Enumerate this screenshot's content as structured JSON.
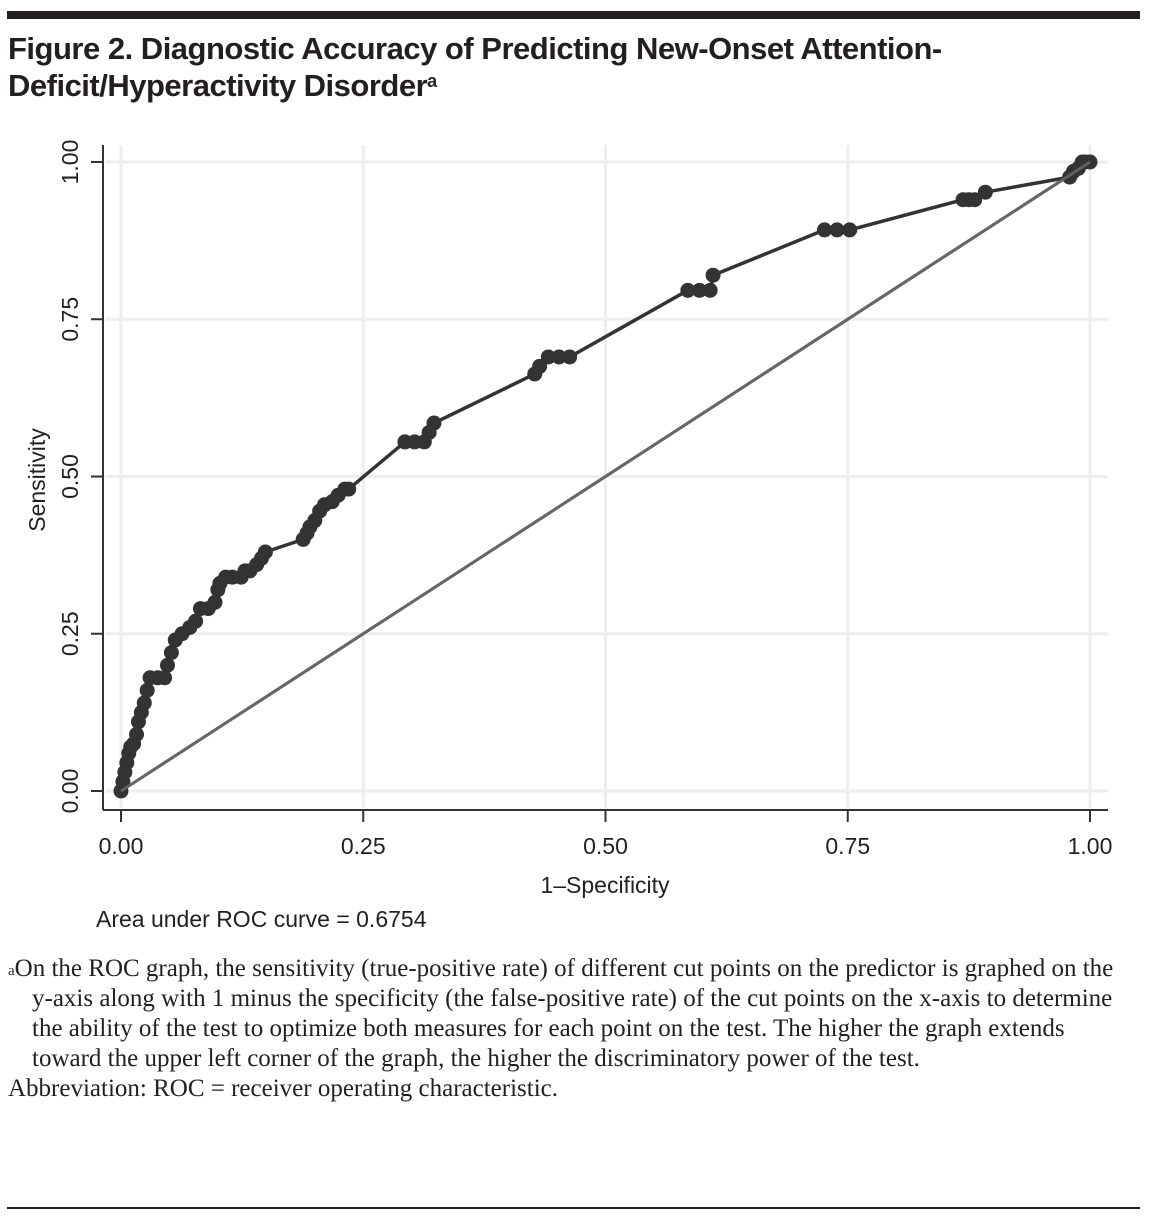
{
  "figure": {
    "title": "Figure 2. Diagnostic Accuracy of Predicting New-Onset Attention-Deficit/Hyperactivity Disorder",
    "title_superscript": "a",
    "auc_label": "Area under ROC curve = 0.6754",
    "footnote_marker": "a",
    "footnote": "On the ROC graph, the sensitivity (true-positive rate) of different cut points on the predictor is graphed on the y-axis along with 1 minus the specificity (the false-positive rate) of the cut points on the x-axis to determine the ability of the test to optimize both measures for each point on the test. The higher the graph extends toward the upper left corner of the graph, the higher the discriminatory power of the test.",
    "abbreviation": "Abbreviation: ROC = receiver operating characteristic."
  },
  "colors": {
    "curve": "#333333",
    "reference": "#666666",
    "grid": "#eeeeee",
    "axis": "#333333"
  },
  "chart_data": {
    "type": "line",
    "title": "Diagnostic Accuracy of Predicting New-Onset Attention-Deficit/Hyperactivity Disorder",
    "xlabel": "1–Specificity",
    "ylabel": "Sensitivity",
    "xlim": [
      0,
      1
    ],
    "ylim": [
      0,
      1
    ],
    "xticks": [
      "0.00",
      "0.25",
      "0.50",
      "0.75",
      "1.00"
    ],
    "yticks": [
      "0.00",
      "0.25",
      "0.50",
      "0.75",
      "1.00"
    ],
    "xtick_values": [
      0,
      0.25,
      0.5,
      0.75,
      1
    ],
    "ytick_values": [
      0,
      0.25,
      0.5,
      0.75,
      1
    ],
    "grid": true,
    "legend": "none",
    "annotation": "Area under ROC curve = 0.6754",
    "series": [
      {
        "name": "ROC curve",
        "markers": true,
        "x": [
          0,
          0.002,
          0.004,
          0.006,
          0.008,
          0.01,
          0.013,
          0.016,
          0.018,
          0.021,
          0.024,
          0.027,
          0.03,
          0.038,
          0.045,
          0.048,
          0.052,
          0.056,
          0.063,
          0.071,
          0.077,
          0.082,
          0.09,
          0.097,
          0.1,
          0.102,
          0.108,
          0.115,
          0.124,
          0.128,
          0.133,
          0.14,
          0.145,
          0.149,
          0.188,
          0.192,
          0.195,
          0.2,
          0.205,
          0.21,
          0.218,
          0.224,
          0.231,
          0.235,
          0.293,
          0.303,
          0.313,
          0.318,
          0.323,
          0.427,
          0.432,
          0.441,
          0.452,
          0.463,
          0.585,
          0.597,
          0.608,
          0.611,
          0.726,
          0.739,
          0.752,
          0.869,
          0.875,
          0.881,
          0.892,
          0.979,
          0.983,
          0.988,
          0.992,
          0.995,
          1
        ],
        "y": [
          0,
          0.015,
          0.03,
          0.045,
          0.06,
          0.07,
          0.075,
          0.09,
          0.11,
          0.125,
          0.14,
          0.16,
          0.18,
          0.18,
          0.18,
          0.2,
          0.22,
          0.24,
          0.25,
          0.26,
          0.27,
          0.29,
          0.29,
          0.3,
          0.32,
          0.33,
          0.34,
          0.34,
          0.34,
          0.35,
          0.35,
          0.36,
          0.37,
          0.38,
          0.4,
          0.41,
          0.42,
          0.43,
          0.445,
          0.455,
          0.46,
          0.47,
          0.48,
          0.48,
          0.555,
          0.555,
          0.555,
          0.57,
          0.585,
          0.663,
          0.675,
          0.69,
          0.69,
          0.69,
          0.796,
          0.796,
          0.796,
          0.82,
          0.892,
          0.892,
          0.892,
          0.94,
          0.94,
          0.94,
          0.952,
          0.976,
          0.985,
          0.99,
          1,
          1,
          1
        ]
      },
      {
        "name": "Reference line",
        "markers": false,
        "x": [
          0,
          1
        ],
        "y": [
          0,
          1
        ]
      }
    ]
  }
}
